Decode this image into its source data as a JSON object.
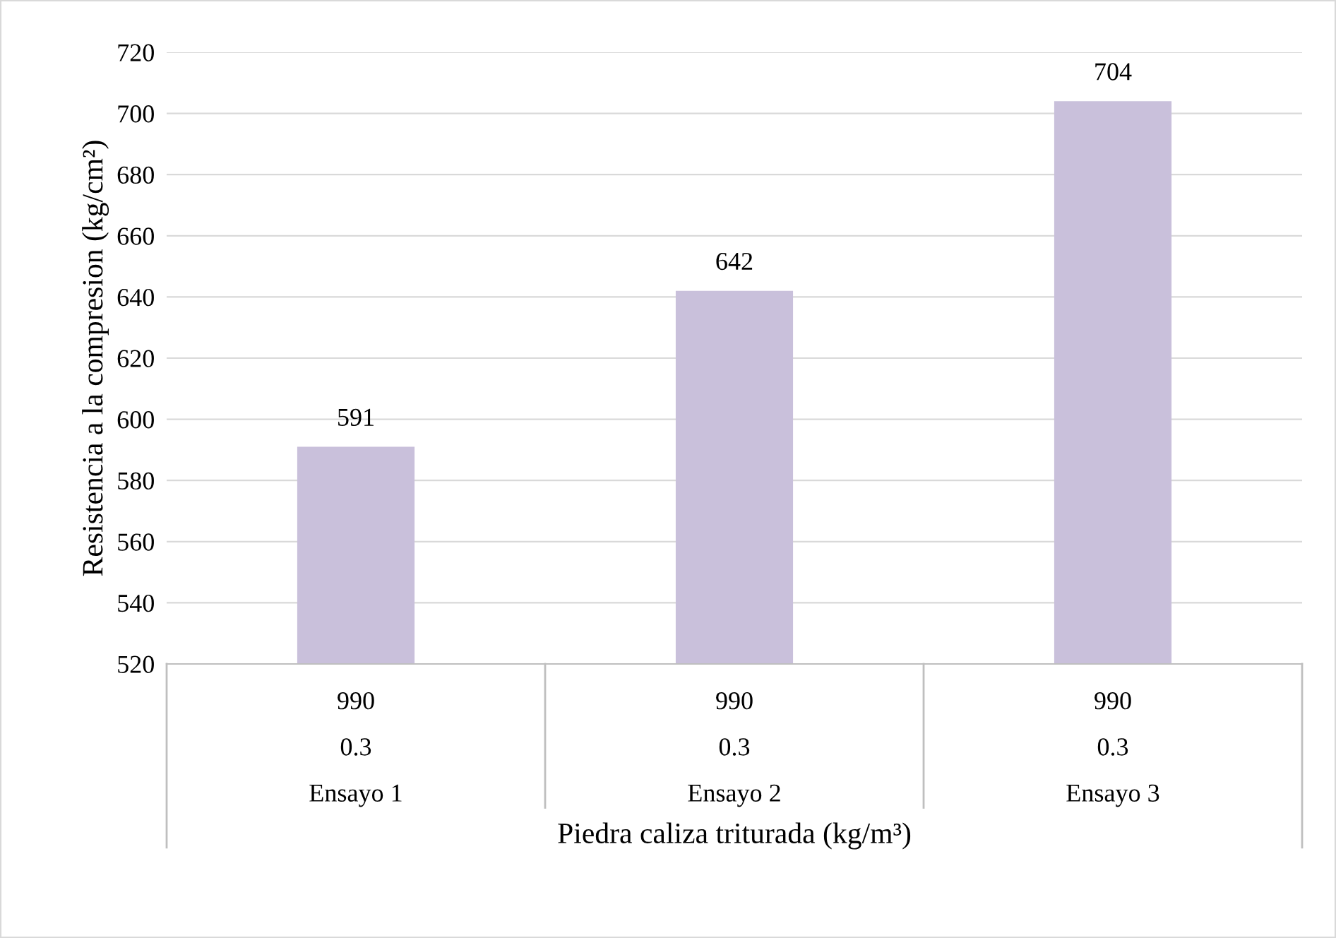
{
  "chart_data": {
    "type": "bar",
    "xlabel": "Piedra caliza triturada (kg/m³)",
    "ylabel": "Resistencia a la compresion (kg/cm²)",
    "categories": [
      "990\n0.3\nEnsayo 1",
      "990\n0.3\nEnsayo 2",
      "990\n0.3\nEnsayo 3"
    ],
    "values": [
      591,
      642,
      704
    ],
    "color": "#c9c0db",
    "ylim": [
      520,
      720
    ],
    "yticks": [
      520,
      540,
      560,
      580,
      600,
      620,
      640,
      660,
      680,
      700,
      720
    ],
    "grid": "y",
    "data_labels": true
  }
}
